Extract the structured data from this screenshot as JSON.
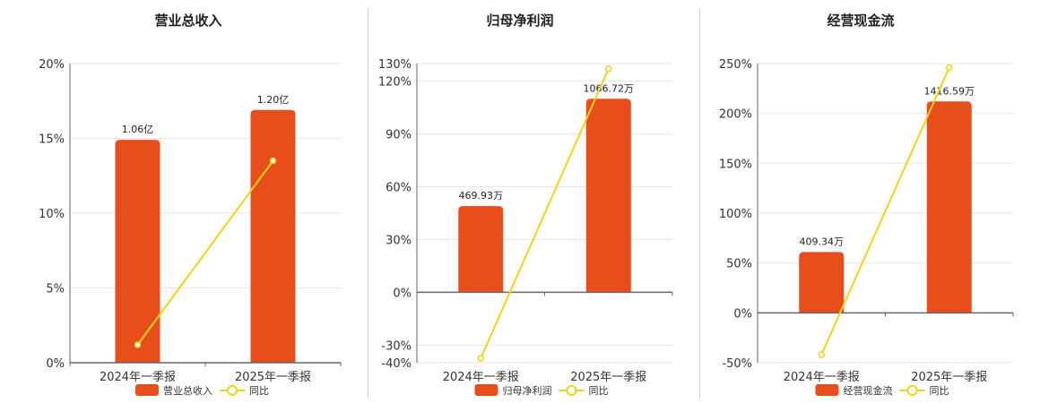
{
  "colors": {
    "bar": "#e84e1b",
    "line": "#f2d21b",
    "grid": "#e6e6e6",
    "axis": "#666666"
  },
  "legend_series_label": "同比",
  "chart_data": [
    {
      "type": "bar",
      "title": "营业总收入",
      "categories": [
        "2024年一季报",
        "2025年一季报"
      ],
      "y_ticks": [
        "0%",
        "5%",
        "10%",
        "15%",
        "20%"
      ],
      "ylim": [
        0,
        20
      ],
      "series": [
        {
          "name": "营业总收入",
          "kind": "bar",
          "values": [
            14.9,
            16.9
          ],
          "labels": [
            "1.06亿",
            "1.20亿"
          ]
        },
        {
          "name": "同比",
          "kind": "line",
          "values": [
            1.2,
            13.5
          ]
        }
      ]
    },
    {
      "type": "bar",
      "title": "归母净利润",
      "categories": [
        "2024年一季报",
        "2025年一季报"
      ],
      "y_ticks": [
        "-40%",
        "-30%",
        "0%",
        "30%",
        "60%",
        "90%",
        "120%",
        "130%"
      ],
      "ylim": [
        -40,
        130
      ],
      "series": [
        {
          "name": "归母净利润",
          "kind": "bar",
          "values": [
            49,
            110
          ],
          "labels": [
            "469.93万",
            "1066.72万"
          ]
        },
        {
          "name": "同比",
          "kind": "line",
          "values": [
            -37.5,
            127
          ]
        }
      ]
    },
    {
      "type": "bar",
      "title": "经营现金流",
      "categories": [
        "2024年一季报",
        "2025年一季报"
      ],
      "y_ticks": [
        "-50%",
        "0%",
        "50%",
        "100%",
        "150%",
        "200%",
        "250%"
      ],
      "ylim": [
        -50,
        250
      ],
      "series": [
        {
          "name": "经营现金流",
          "kind": "bar",
          "values": [
            61,
            212
          ],
          "labels": [
            "409.34万",
            "1416.59万"
          ]
        },
        {
          "name": "同比",
          "kind": "line",
          "values": [
            -42,
            246
          ]
        }
      ]
    }
  ]
}
